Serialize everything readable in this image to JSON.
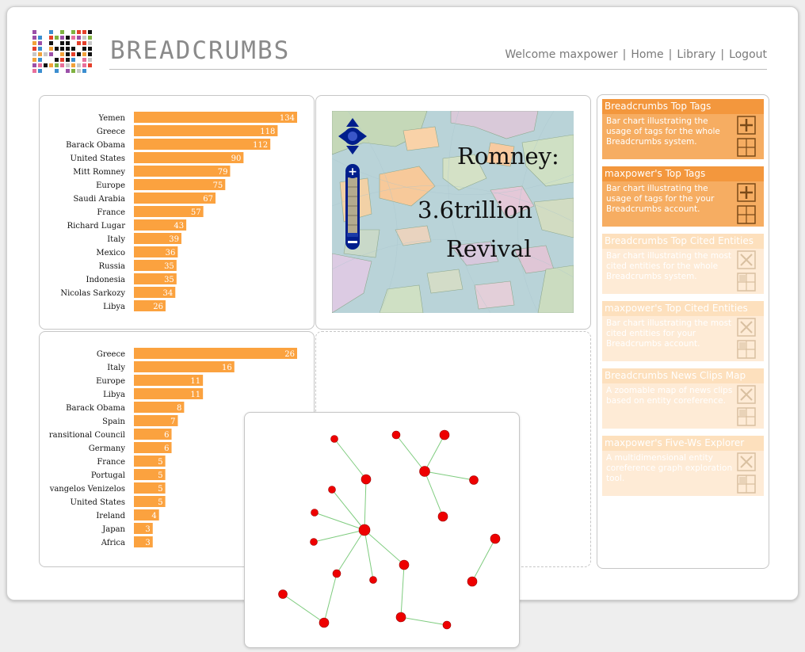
{
  "header": {
    "brand": "BREADCRUMBS",
    "welcome": "Welcome maxpower",
    "nav": [
      "Home",
      "Library",
      "Logout"
    ],
    "separator": "|"
  },
  "colors": {
    "bar": "#fba23f",
    "accent": "#f3973d",
    "node": "#ee0000",
    "edge": "#7fcc7f",
    "map_controls": "#001e8c"
  },
  "chart_data": [
    {
      "type": "bar",
      "orientation": "horizontal",
      "categories": [
        "Yemen",
        "Greece",
        "Barack Obama",
        "United States",
        "Mitt Romney",
        "Europe",
        "Saudi Arabia",
        "France",
        "Richard Lugar",
        "Italy",
        "Mexico",
        "Russia",
        "Indonesia",
        "Nicolas Sarkozy",
        "Libya"
      ],
      "values": [
        134,
        118,
        112,
        90,
        79,
        75,
        67,
        57,
        43,
        39,
        36,
        35,
        35,
        34,
        26
      ],
      "data_labels": true
    },
    {
      "type": "bar",
      "orientation": "horizontal",
      "categories": [
        "Greece",
        "Italy",
        "Europe",
        "Libya",
        "Barack Obama",
        "Spain",
        "ransitional Council",
        "Germany",
        "France",
        "Portugal",
        "vangelos Venizelos",
        "United States",
        "Ireland",
        "Japan",
        "Africa"
      ],
      "values": [
        26,
        16,
        11,
        11,
        8,
        7,
        6,
        6,
        5,
        5,
        5,
        5,
        4,
        3,
        3
      ],
      "data_labels": true
    }
  ],
  "map": {
    "overlay_lines": [
      "Romney:",
      "3.6trillion",
      "Revival"
    ],
    "controls": [
      "pan",
      "zoom-in",
      "zoom-out"
    ]
  },
  "graph": {
    "nodes": [
      {
        "id": "a"
      },
      {
        "id": "b"
      },
      {
        "id": "c"
      },
      {
        "id": "d"
      },
      {
        "id": "e"
      },
      {
        "id": "f"
      },
      {
        "id": "g"
      },
      {
        "id": "h"
      },
      {
        "id": "i"
      },
      {
        "id": "j"
      },
      {
        "id": "k"
      },
      {
        "id": "l"
      },
      {
        "id": "m"
      },
      {
        "id": "n"
      },
      {
        "id": "o"
      },
      {
        "id": "p"
      },
      {
        "id": "q"
      },
      {
        "id": "r"
      },
      {
        "id": "s"
      },
      {
        "id": "t"
      }
    ]
  },
  "widgets": [
    {
      "title": "Breadcrumbs Top Tags",
      "desc": "Bar chart illustrating the usage of tags for the whole Breadcrumbs system.",
      "active": true
    },
    {
      "title": "maxpower's Top Tags",
      "desc": "Bar chart illustrating the usage of tags for the your Breadcrumbs account.",
      "active": true
    },
    {
      "title": "Breadcrumbs Top Cited Entities",
      "desc": "Bar chart illustrating the most cited entities for the whole Breadcrumbs system.",
      "active": false
    },
    {
      "title": "maxpower's Top Cited Entities",
      "desc": "Bar chart illustrating the most cited entities for your Breadcrumbs account.",
      "active": false
    },
    {
      "title": "Breadcrumbs News Clips Map",
      "desc": "A zoomable map of news clips based on entity coreference.",
      "active": false
    },
    {
      "title": "maxpower's Five-Ws Explorer",
      "desc": "A multidimensional entity coreference graph exploration tool.",
      "active": false
    }
  ]
}
